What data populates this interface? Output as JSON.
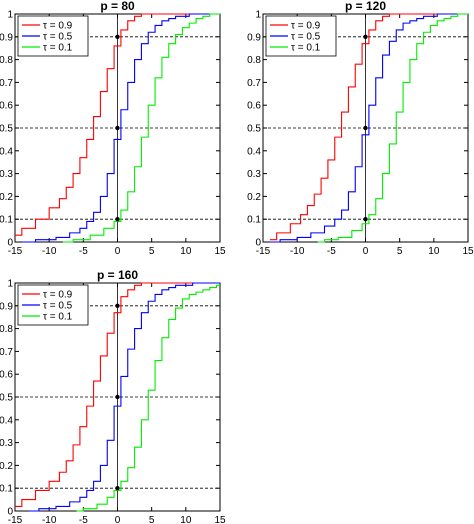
{
  "chart_data": [
    {
      "type": "line",
      "title": "p = 80",
      "xlabel": "",
      "ylabel": "",
      "xlim": [
        -15,
        15
      ],
      "ylim": [
        0,
        1
      ],
      "xticks": [
        "-15",
        "-10",
        "-5",
        "0",
        "5",
        "10",
        "15"
      ],
      "yticks": [
        "0",
        "0.1",
        "0.2",
        "0.3",
        "0.4",
        "0.5",
        "0.6",
        "0.7",
        "0.8",
        "0.9",
        "1"
      ],
      "hlines": [
        0.1,
        0.5,
        0.9
      ],
      "vline": 0,
      "markers": [
        [
          0,
          0.1
        ],
        [
          0,
          0.5
        ],
        [
          0,
          0.9
        ]
      ],
      "legend_position": "top-left",
      "series": [
        {
          "name": "τ = 0.9",
          "color": "#ff0000",
          "x": [
            -15,
            -13,
            -11,
            -9,
            -8,
            -7,
            -6,
            -5,
            -4,
            -3,
            -2,
            -1,
            0,
            1,
            2,
            3,
            4,
            5,
            15
          ],
          "y": [
            0.03,
            0.06,
            0.1,
            0.15,
            0.19,
            0.24,
            0.3,
            0.37,
            0.45,
            0.55,
            0.66,
            0.76,
            0.86,
            0.93,
            0.97,
            0.99,
            1.0,
            1.0,
            1.0
          ]
        },
        {
          "name": "τ = 0.5",
          "color": "#0000ff",
          "x": [
            -14,
            -10,
            -8,
            -6,
            -5,
            -4,
            -3,
            -2,
            -1,
            0,
            1,
            2,
            3,
            4,
            5,
            6,
            7,
            8,
            9,
            10,
            11,
            15
          ],
          "y": [
            0.0,
            0.01,
            0.02,
            0.04,
            0.06,
            0.09,
            0.13,
            0.2,
            0.3,
            0.45,
            0.58,
            0.7,
            0.8,
            0.87,
            0.92,
            0.95,
            0.97,
            0.98,
            0.99,
            0.99,
            1.0,
            1.0
          ]
        },
        {
          "name": "τ = 0.1",
          "color": "#00ee00",
          "x": [
            -8,
            -5,
            -3,
            -1,
            0,
            1,
            2,
            3,
            4,
            5,
            6,
            7,
            8,
            9,
            10,
            11,
            12,
            13,
            14,
            15
          ],
          "y": [
            0.0,
            0.01,
            0.03,
            0.06,
            0.09,
            0.14,
            0.22,
            0.33,
            0.46,
            0.6,
            0.72,
            0.81,
            0.87,
            0.91,
            0.94,
            0.96,
            0.98,
            0.99,
            1.0,
            1.0
          ]
        }
      ]
    },
    {
      "type": "line",
      "title": "p = 120",
      "xlabel": "",
      "ylabel": "",
      "xlim": [
        -15,
        15
      ],
      "ylim": [
        0,
        1
      ],
      "xticks": [
        "-15",
        "-10",
        "-5",
        "0",
        "5",
        "10",
        "15"
      ],
      "yticks": [
        "0",
        "0.1",
        "0.2",
        "0.3",
        "0.4",
        "0.5",
        "0.6",
        "0.7",
        "0.8",
        "0.9",
        "1"
      ],
      "hlines": [
        0.1,
        0.5,
        0.9
      ],
      "vline": 0,
      "markers": [
        [
          0,
          0.1
        ],
        [
          0,
          0.5
        ],
        [
          0,
          0.9
        ]
      ],
      "legend_position": "top-left",
      "series": [
        {
          "name": "τ = 0.9",
          "color": "#ff0000",
          "x": [
            -14,
            -12,
            -10,
            -9,
            -8,
            -7,
            -6,
            -5,
            -4,
            -3,
            -2,
            -1,
            0,
            1,
            2,
            3,
            4,
            5,
            15
          ],
          "y": [
            0.01,
            0.04,
            0.08,
            0.12,
            0.16,
            0.21,
            0.28,
            0.36,
            0.46,
            0.57,
            0.68,
            0.78,
            0.87,
            0.93,
            0.97,
            0.99,
            1.0,
            1.0,
            1.0
          ]
        },
        {
          "name": "τ = 0.5",
          "color": "#0000ff",
          "x": [
            -14,
            -11,
            -9,
            -7,
            -5,
            -4,
            -3,
            -2,
            -1,
            0,
            1,
            2,
            3,
            4,
            5,
            6,
            7,
            8,
            9,
            10,
            11,
            15
          ],
          "y": [
            0.0,
            0.01,
            0.02,
            0.04,
            0.07,
            0.1,
            0.14,
            0.22,
            0.33,
            0.47,
            0.6,
            0.72,
            0.82,
            0.88,
            0.93,
            0.96,
            0.97,
            0.98,
            0.99,
            0.99,
            1.0,
            1.0
          ]
        },
        {
          "name": "τ = 0.1",
          "color": "#00ee00",
          "x": [
            -7,
            -5,
            -3,
            -1,
            0,
            1,
            2,
            3,
            4,
            5,
            6,
            7,
            8,
            9,
            10,
            11,
            12,
            13,
            14,
            15
          ],
          "y": [
            0.0,
            0.01,
            0.02,
            0.05,
            0.08,
            0.12,
            0.19,
            0.3,
            0.43,
            0.57,
            0.7,
            0.8,
            0.87,
            0.92,
            0.95,
            0.97,
            0.98,
            0.99,
            1.0,
            1.0
          ]
        }
      ]
    },
    {
      "type": "line",
      "title": "p = 160",
      "xlabel": "",
      "ylabel": "",
      "xlim": [
        -15,
        15
      ],
      "ylim": [
        0,
        1
      ],
      "xticks": [
        "-15",
        "-10",
        "-5",
        "0",
        "5",
        "10",
        "15"
      ],
      "yticks": [
        "0",
        "0.1",
        "0.2",
        "0.3",
        "0.4",
        "0.5",
        "0.6",
        "0.7",
        "0.8",
        "0.9",
        "1"
      ],
      "hlines": [
        0.1,
        0.5,
        0.9
      ],
      "vline": 0,
      "markers": [
        [
          0,
          0.1
        ],
        [
          0,
          0.5
        ],
        [
          0,
          0.9
        ]
      ],
      "legend_position": "top-left",
      "series": [
        {
          "name": "τ = 0.9",
          "color": "#ff0000",
          "x": [
            -15,
            -13,
            -11,
            -9,
            -8,
            -7,
            -6,
            -5,
            -4,
            -3,
            -2,
            -1,
            0,
            1,
            2,
            3,
            4,
            5,
            15
          ],
          "y": [
            0.02,
            0.05,
            0.09,
            0.13,
            0.17,
            0.22,
            0.29,
            0.37,
            0.46,
            0.57,
            0.68,
            0.78,
            0.87,
            0.94,
            0.97,
            0.99,
            1.0,
            1.0,
            1.0
          ]
        },
        {
          "name": "τ = 0.5",
          "color": "#0000ff",
          "x": [
            -13,
            -10,
            -8,
            -6,
            -5,
            -4,
            -3,
            -2,
            -1,
            0,
            1,
            2,
            3,
            4,
            5,
            6,
            7,
            8,
            9,
            10,
            12,
            15
          ],
          "y": [
            0.0,
            0.01,
            0.02,
            0.04,
            0.06,
            0.09,
            0.13,
            0.2,
            0.31,
            0.46,
            0.59,
            0.71,
            0.8,
            0.87,
            0.92,
            0.95,
            0.97,
            0.98,
            0.99,
            0.99,
            1.0,
            1.0
          ]
        },
        {
          "name": "τ = 0.1",
          "color": "#00ee00",
          "x": [
            -6,
            -4,
            -2,
            -1,
            0,
            1,
            2,
            3,
            4,
            5,
            6,
            7,
            8,
            9,
            10,
            11,
            12,
            13,
            14,
            15
          ],
          "y": [
            0.0,
            0.01,
            0.03,
            0.06,
            0.09,
            0.13,
            0.19,
            0.28,
            0.4,
            0.53,
            0.66,
            0.76,
            0.84,
            0.89,
            0.93,
            0.95,
            0.96,
            0.97,
            0.98,
            0.99
          ]
        }
      ]
    }
  ]
}
